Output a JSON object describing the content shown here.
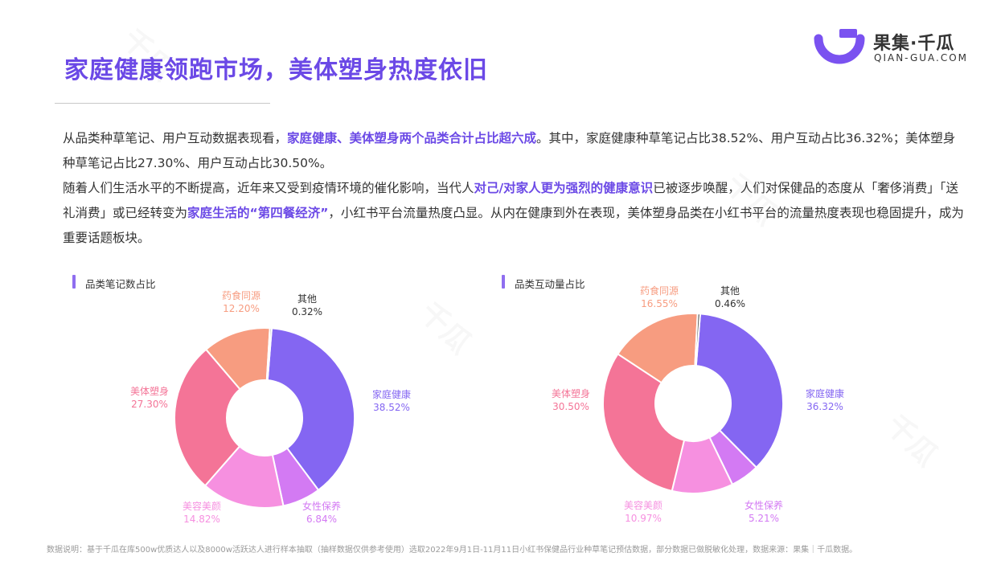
{
  "header": {
    "title": "家庭健康领跑市场，美体塑身热度依旧",
    "logo_cn": "果集·千瓜",
    "logo_en": "QIAN-GUA.COM"
  },
  "intro": {
    "p1_a": "从品类种草笔记、用户互动数据表现看，",
    "p1_hl": "家庭健康、美体塑身两个品类合计占比超六成",
    "p1_b": "。其中，家庭健康种草笔记占比38.52%、用户互动占比36.32%；美体塑身种草笔记占比27.30%、用户互动占比30.50%。",
    "p2_a": "随着人们生活水平的不断提高，近年来又受到疫情环境的催化影响，当代人",
    "p2_hl1": "对己/对家人更为强烈的健康意识",
    "p2_b": "已被逐步唤醒，人们对保健品的态度从「奢侈消费」「送礼消费」或已经转变为",
    "p2_hl2": "家庭生活的“第四餐经济”",
    "p2_c": "，小红书平台流量热度凸显。从内在健康到外在表现，美体塑身品类在小红书平台的流量热度表现也稳固提升，成为重要话题板块。"
  },
  "chart_data": [
    {
      "type": "pie",
      "title": "品类笔记数占比",
      "slices": [
        {
          "name": "家庭健康",
          "value": 38.52,
          "label": "38.52%",
          "color": "#8466F2"
        },
        {
          "name": "女性保养",
          "value": 6.84,
          "label": "6.84%",
          "color": "#D37AF3"
        },
        {
          "name": "美容美颜",
          "value": 14.82,
          "label": "14.82%",
          "color": "#F690E0"
        },
        {
          "name": "美体塑身",
          "value": 27.3,
          "label": "27.30%",
          "color": "#F47497"
        },
        {
          "name": "药食同源",
          "value": 12.2,
          "label": "12.20%",
          "color": "#F79C80"
        },
        {
          "name": "其他",
          "value": 0.32,
          "label": "0.32%",
          "color": "#555555"
        }
      ]
    },
    {
      "type": "pie",
      "title": "品类互动量占比",
      "slices": [
        {
          "name": "家庭健康",
          "value": 36.32,
          "label": "36.32%",
          "color": "#8466F2"
        },
        {
          "name": "女性保养",
          "value": 5.21,
          "label": "5.21%",
          "color": "#D37AF3"
        },
        {
          "name": "美容美颜",
          "value": 10.97,
          "label": "10.97%",
          "color": "#F690E0"
        },
        {
          "name": "美体塑身",
          "value": 30.5,
          "label": "30.50%",
          "color": "#F47497"
        },
        {
          "name": "药食同源",
          "value": 16.55,
          "label": "16.55%",
          "color": "#F79C80"
        },
        {
          "name": "其他",
          "value": 0.46,
          "label": "0.46%",
          "color": "#555555"
        }
      ]
    }
  ],
  "footer": {
    "note": "数据说明：基于千瓜在库500w优质达人以及8000w活跃达人进行样本抽取（抽样数据仅供参考使用）选取2022年9月1日-11月11日小红书保健品行业种草笔记预估数据，部分数据已做脱敏化处理，数据来源：果集｜千瓜数据。"
  }
}
